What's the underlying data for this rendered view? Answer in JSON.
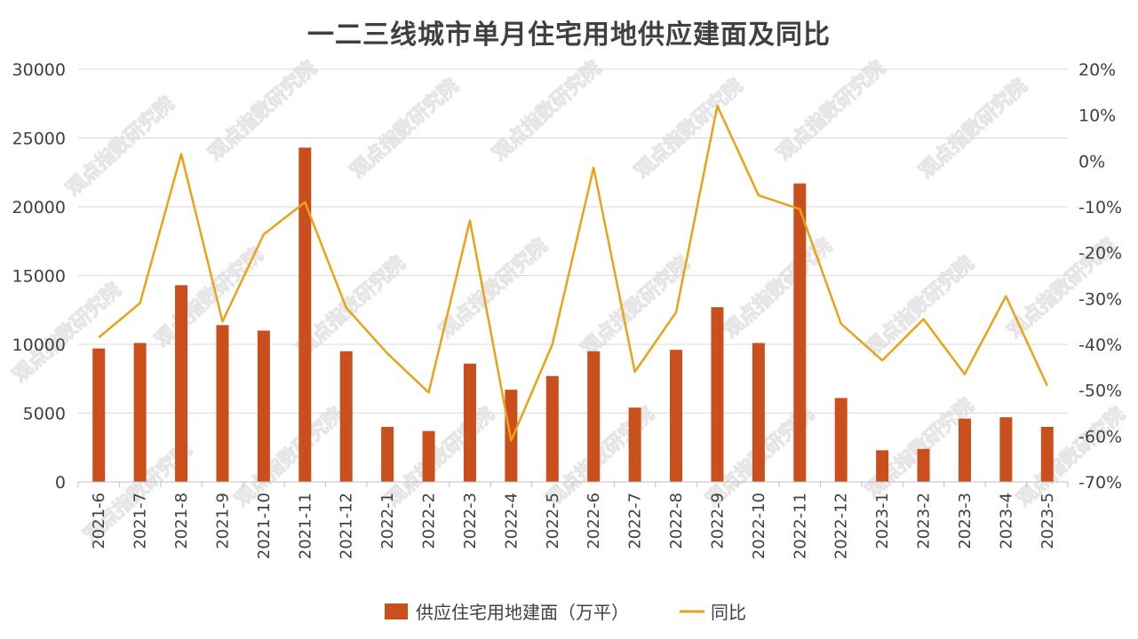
{
  "watermark": "观点指数研究院",
  "chart_data": {
    "type": "bar+line",
    "title": "一二三线城市单月住宅用地供应建面及同比",
    "categories": [
      "2021-6",
      "2021-7",
      "2021-8",
      "2021-9",
      "2021-10",
      "2021-11",
      "2021-12",
      "2022-1",
      "2022-2",
      "2022-3",
      "2022-4",
      "2022-5",
      "2022-6",
      "2022-7",
      "2022-8",
      "2022-9",
      "2022-10",
      "2022-11",
      "2022-12",
      "2023-1",
      "2023-2",
      "2023-3",
      "2023-4",
      "2023-5"
    ],
    "series": [
      {
        "name": "供应住宅用地建面（万平）",
        "type": "bar",
        "axis": "left",
        "color": "#C9501C",
        "values": [
          9700,
          10100,
          14300,
          11400,
          11000,
          24300,
          9500,
          4000,
          3700,
          8600,
          6700,
          7700,
          9500,
          5400,
          9600,
          12700,
          10100,
          21700,
          6100,
          2300,
          2400,
          4600,
          4700,
          4000
        ]
      },
      {
        "name": "同比",
        "type": "line",
        "axis": "right",
        "color": "#E8A317",
        "values": [
          -38.5,
          -31,
          1.5,
          -35,
          -16,
          -9,
          -32,
          -42,
          -50.5,
          -13,
          -61,
          -40,
          -1.5,
          -46,
          -33,
          12,
          -7.5,
          -10.5,
          -35.5,
          -43.5,
          -34.5,
          -46.5,
          -29.5,
          -49
        ]
      }
    ],
    "y_left": {
      "min": 0,
      "max": 30000,
      "ticks": [
        "0",
        "5000",
        "10000",
        "15000",
        "20000",
        "25000",
        "30000"
      ]
    },
    "y_right": {
      "min": -70,
      "max": 20,
      "ticks": [
        "-70%",
        "-60%",
        "-50%",
        "-40%",
        "-30%",
        "-20%",
        "-10%",
        "0%",
        "10%",
        "20%"
      ]
    },
    "grid": true,
    "legend": "bottom"
  }
}
